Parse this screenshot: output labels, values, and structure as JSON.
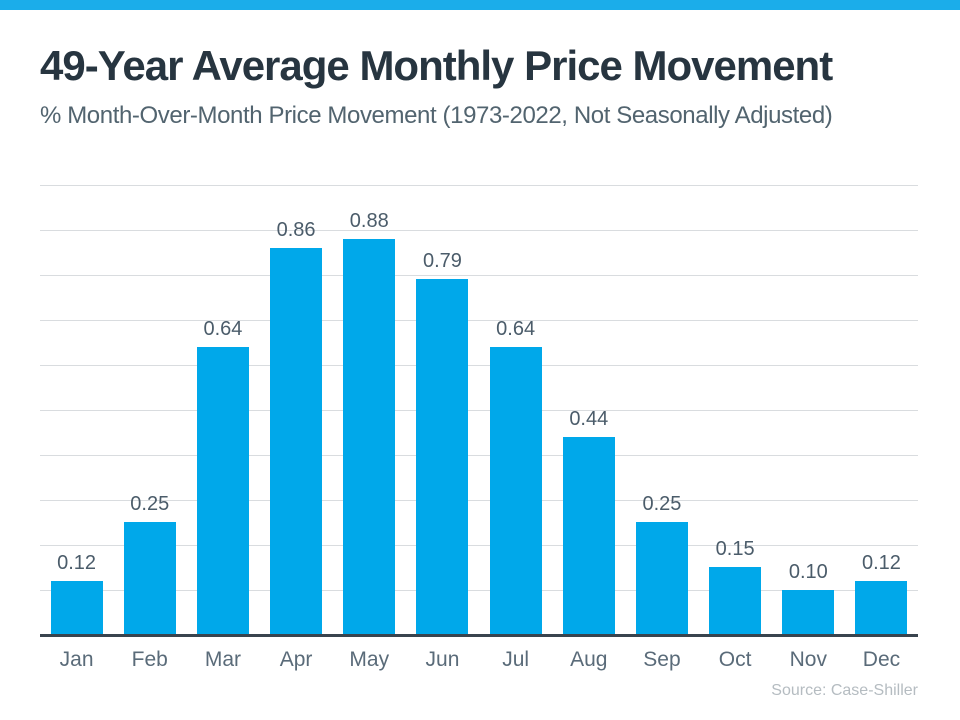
{
  "header": {
    "title": "49-Year Average Monthly Price Movement",
    "subtitle": "% Month-Over-Month Price Movement (1973-2022, Not Seasonally Adjusted)"
  },
  "footer": {
    "source": "Source: Case-Shiller"
  },
  "colors": {
    "top_band": "#1badea",
    "bar": "#00a8ea",
    "axis_line": "#39444e",
    "gridline": "#d9dcdf",
    "title_text": "#273540",
    "subtitle_text": "#52646f",
    "value_label_text": "#4b5c6a",
    "month_label_text": "#5a6b79",
    "source_text": "#b5bcc1"
  },
  "chart_data": {
    "type": "bar",
    "categories": [
      "Jan",
      "Feb",
      "Mar",
      "Apr",
      "May",
      "Jun",
      "Jul",
      "Aug",
      "Sep",
      "Oct",
      "Nov",
      "Dec"
    ],
    "values": [
      0.12,
      0.25,
      0.64,
      0.86,
      0.88,
      0.79,
      0.64,
      0.44,
      0.25,
      0.15,
      0.1,
      0.12
    ],
    "data_labels": [
      "0.12",
      "0.25",
      "0.64",
      "0.86",
      "0.88",
      "0.79",
      "0.64",
      "0.44",
      "0.25",
      "0.15",
      "0.10",
      "0.12"
    ],
    "title": "49-Year Average Monthly Price Movement",
    "subtitle": "% Month-Over-Month Price Movement (1973-2022, Not Seasonally Adjusted)",
    "xlabel": "",
    "ylabel": "",
    "ylim": [
      0,
      1.0
    ],
    "gridline_step": 0.1,
    "grid": true,
    "legend": false,
    "y_axis_labels_shown": false,
    "source": "Source: Case-Shiller"
  }
}
